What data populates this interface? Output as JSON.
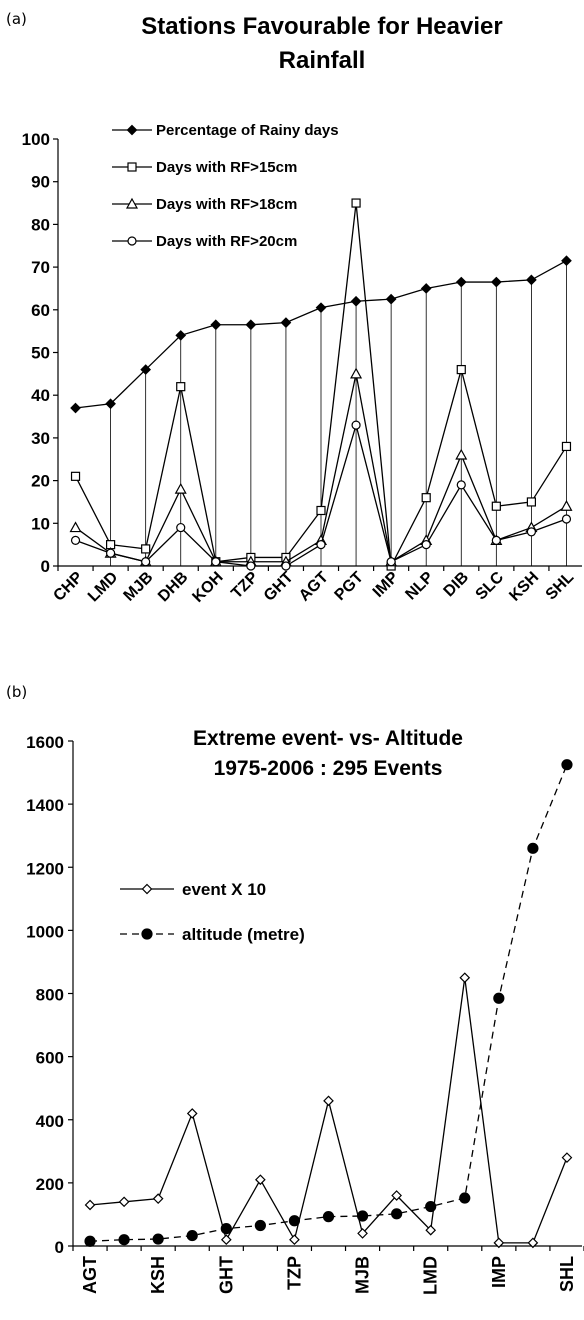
{
  "panel_a_label": "(a)",
  "panel_b_label": "(b)",
  "chart_data": [
    {
      "type": "line",
      "title_lines": [
        "Stations Favourable for Heavier",
        "Rainfall"
      ],
      "categories": [
        "CHP",
        "LMD",
        "MJB",
        "DHB",
        "KOH",
        "TZP",
        "GHT",
        "AGT",
        "PGT",
        "IMP",
        "NLP",
        "DIB",
        "SLC",
        "KSH",
        "SHL"
      ],
      "ylim": [
        0,
        100
      ],
      "yticks": [
        0,
        10,
        20,
        30,
        40,
        50,
        60,
        70,
        80,
        90,
        100
      ],
      "grid": false,
      "drop_lines": true,
      "legend_position": "top-left",
      "series": [
        {
          "name": "Percentage of Rainy days",
          "marker": "diamond",
          "values": [
            37,
            38,
            46,
            54,
            56.5,
            56.5,
            57,
            60.5,
            62,
            62.5,
            65,
            66.5,
            66.5,
            67,
            71.5
          ]
        },
        {
          "name": "Days with RF>15cm",
          "marker": "square",
          "values": [
            21,
            5,
            4,
            42,
            1,
            2,
            2,
            13,
            85,
            0,
            16,
            46,
            14,
            15,
            28
          ]
        },
        {
          "name": "Days with RF>18cm",
          "marker": "triangle",
          "values": [
            9,
            3,
            1,
            18,
            1,
            1,
            1,
            6,
            45,
            1,
            6,
            26,
            6,
            9,
            14
          ]
        },
        {
          "name": "Days with RF>20cm",
          "marker": "circle",
          "values": [
            6,
            3,
            1,
            9,
            1,
            0,
            0,
            5,
            33,
            1,
            5,
            19,
            6,
            8,
            11
          ]
        }
      ]
    },
    {
      "type": "line",
      "title_lines": [
        "Extreme event- vs- Altitude",
        "1975-2006 : 295 Events"
      ],
      "tick_labels": [
        "AGT",
        "KSH",
        "GHT",
        "TZP",
        "MJB",
        "LMD",
        "IMP",
        "SHL"
      ],
      "ylim": [
        0,
        1600
      ],
      "yticks": [
        0,
        200,
        400,
        600,
        800,
        1000,
        1200,
        1400,
        1600
      ],
      "grid": false,
      "legend_position": "middle-left",
      "series": [
        {
          "name": "event X 10",
          "marker": "open-diamond",
          "style": "solid",
          "values": [
            130,
            140,
            150,
            420,
            20,
            210,
            20,
            460,
            40,
            160,
            50,
            850,
            10,
            10,
            280
          ]
        },
        {
          "name": "altitude (metre)",
          "marker": "filled-circle",
          "style": "dashed",
          "values": [
            15,
            20,
            22,
            33,
            55,
            65,
            80,
            93,
            95,
            102,
            125,
            152,
            785,
            1260,
            1525
          ]
        }
      ]
    }
  ]
}
